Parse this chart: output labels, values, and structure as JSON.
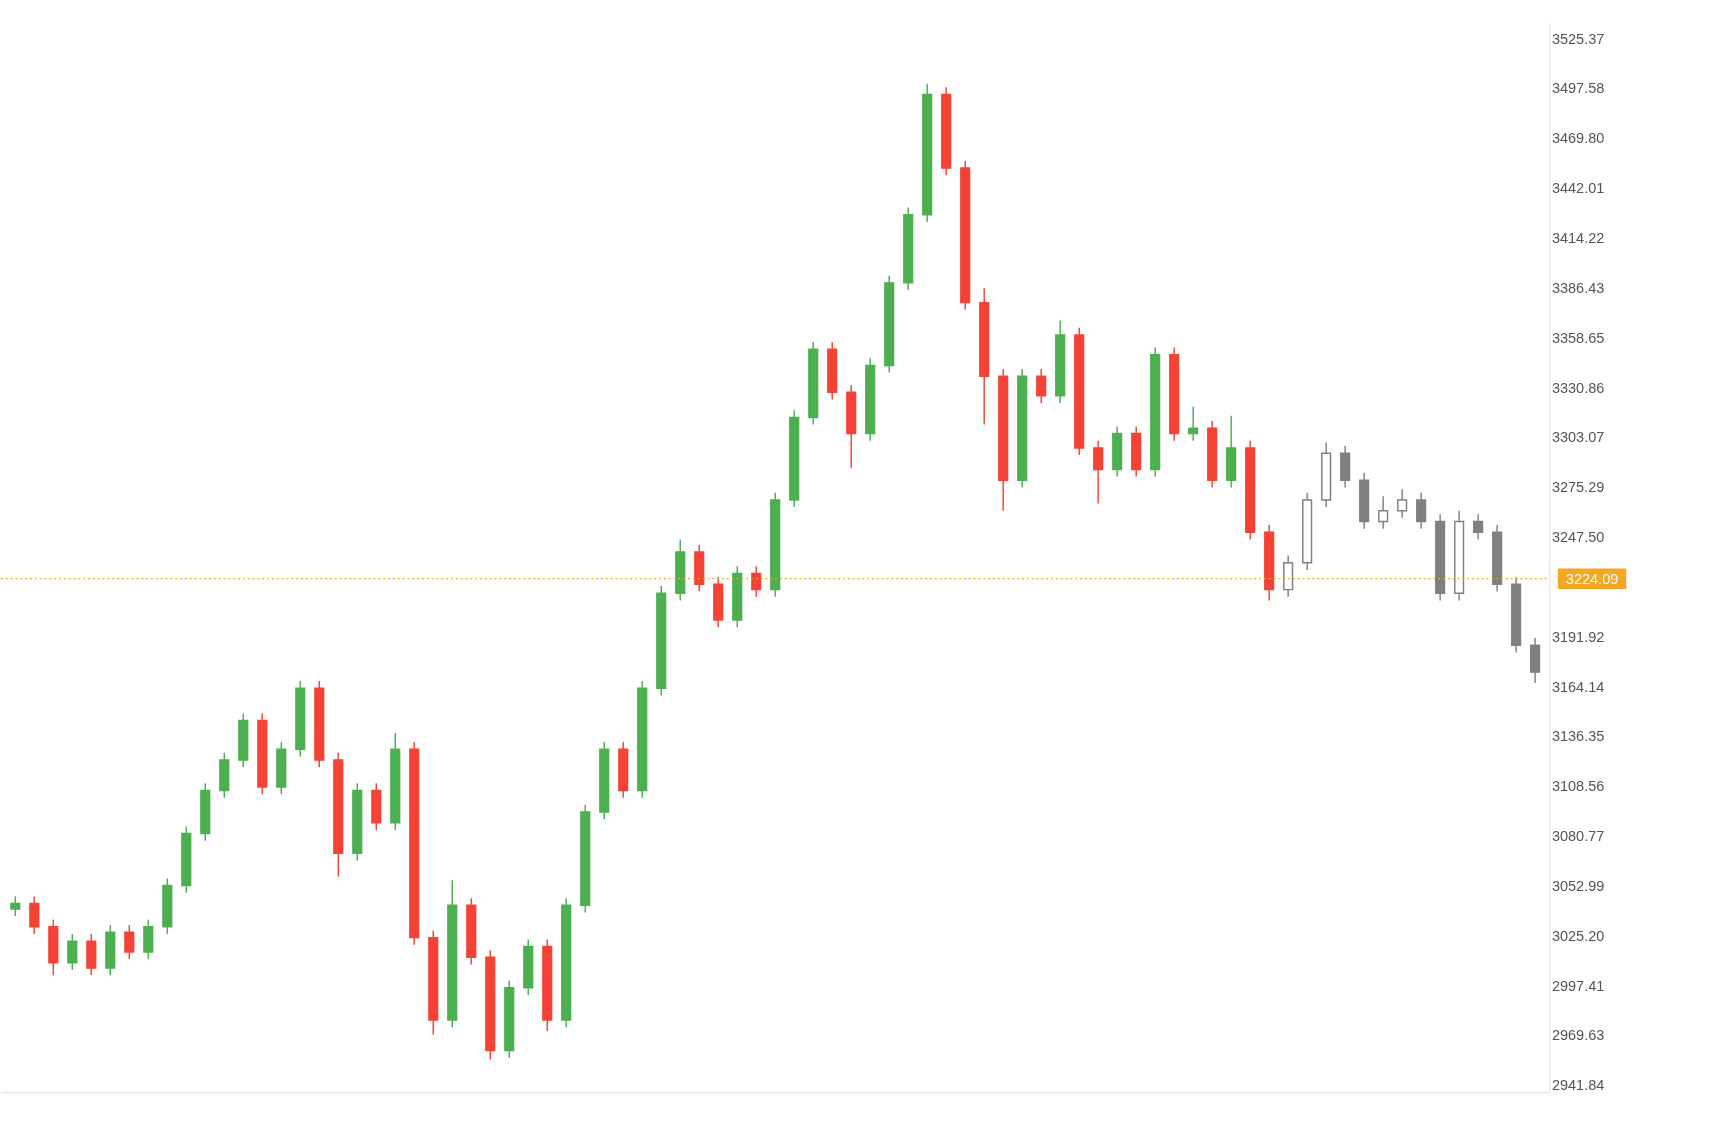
{
  "chart_data": {
    "type": "candlestick",
    "categories": [
      null,
      null,
      null,
      null,
      null,
      null,
      null,
      null,
      null,
      null,
      null,
      null,
      null,
      null,
      null,
      null,
      null,
      null,
      null,
      null,
      null,
      null,
      null,
      null,
      null,
      null,
      null,
      null,
      null,
      null,
      null,
      null,
      null,
      null,
      null,
      null,
      null,
      null,
      null,
      null,
      null,
      null,
      null,
      null,
      null,
      null,
      null,
      null,
      null,
      null,
      null,
      null,
      null,
      null,
      null,
      null,
      null,
      null,
      null,
      null,
      null,
      null,
      null,
      null,
      null,
      null,
      null,
      null,
      null,
      null,
      null,
      null,
      null,
      null,
      null,
      null,
      null,
      null,
      null,
      null,
      null
    ],
    "series": [
      {
        "colors": [
          "#4caf50",
          "#f44336",
          "#f44336",
          "#4caf50",
          "#f44336",
          "#4caf50",
          "#f44336",
          "#4caf50",
          "#4caf50",
          "#4caf50",
          "#4caf50",
          "#4caf50",
          "#4caf50",
          "#f44336",
          "#4caf50",
          "#4caf50",
          "#f44336",
          "#f44336",
          "#4caf50",
          "#f44336",
          "#4caf50",
          "#f44336",
          "#f44336",
          "#4caf50",
          "#f44336",
          "#f44336",
          "#4caf50",
          "#4caf50",
          "#f44336",
          "#4caf50",
          "#4caf50",
          "#4caf50",
          "#f44336",
          "#4caf50",
          "#4caf50",
          "#4caf50",
          "#f44336",
          "#f44336",
          "#4caf50",
          "#f44336",
          "#4caf50",
          "#4caf50",
          "#4caf50",
          "#f44336",
          "#f44336",
          "#4caf50",
          "#4caf50",
          "#4caf50",
          "#4caf50",
          "#f44336",
          "#f44336",
          "#f44336",
          "#f44336",
          "#4caf50",
          "#f44336",
          "#4caf50",
          "#f44336",
          "#f44336",
          "#4caf50",
          "#f44336",
          "#4caf50",
          "#f44336",
          "#4caf50",
          "#f44336",
          "#4caf50",
          "#f44336",
          "#f44336",
          null,
          null,
          null,
          null,
          null,
          null,
          null,
          null,
          null,
          null,
          null,
          null,
          null,
          null
        ],
        "ohlc": [
          [
            3040,
            3047,
            3036,
            3043
          ],
          [
            3043,
            3047,
            3026,
            3030
          ],
          [
            3030,
            3034,
            3003,
            3010
          ],
          [
            3010,
            3026,
            3006,
            3022
          ],
          [
            3022,
            3026,
            3003,
            3007
          ],
          [
            3007,
            3031,
            3003,
            3027
          ],
          [
            3027,
            3031,
            3012,
            3016
          ],
          [
            3016,
            3034,
            3012,
            3030
          ],
          [
            3030,
            3057,
            3026,
            3053
          ],
          [
            3053,
            3086,
            3049,
            3082
          ],
          [
            3082,
            3110,
            3078,
            3106
          ],
          [
            3106,
            3127,
            3102,
            3123
          ],
          [
            3123,
            3149,
            3119,
            3145
          ],
          [
            3145,
            3149,
            3104,
            3108
          ],
          [
            3108,
            3133,
            3104,
            3129
          ],
          [
            3129,
            3167,
            3125,
            3163
          ],
          [
            3163,
            3167,
            3119,
            3123
          ],
          [
            3123,
            3127,
            3058,
            3071
          ],
          [
            3071,
            3110,
            3067,
            3106
          ],
          [
            3106,
            3110,
            3084,
            3088
          ],
          [
            3088,
            3138,
            3084,
            3129
          ],
          [
            3129,
            3133,
            3020,
            3024
          ],
          [
            3024,
            3028,
            2970,
            2978
          ],
          [
            2978,
            3056,
            2974,
            3042
          ],
          [
            3042,
            3046,
            3009,
            3013
          ],
          [
            3013,
            3017,
            2956,
            2961
          ],
          [
            2961,
            3000,
            2957,
            2996
          ],
          [
            2996,
            3023,
            2992,
            3019
          ],
          [
            3019,
            3023,
            2972,
            2978
          ],
          [
            2978,
            3046,
            2974,
            3042
          ],
          [
            3042,
            3098,
            3038,
            3094
          ],
          [
            3094,
            3133,
            3090,
            3129
          ],
          [
            3129,
            3133,
            3102,
            3106
          ],
          [
            3106,
            3167,
            3102,
            3163
          ],
          [
            3163,
            3220,
            3159,
            3216
          ],
          [
            3216,
            3246,
            3212,
            3239
          ],
          [
            3239,
            3243,
            3217,
            3221
          ],
          [
            3221,
            3225,
            3197,
            3201
          ],
          [
            3201,
            3231,
            3197,
            3227
          ],
          [
            3227,
            3231,
            3214,
            3218
          ],
          [
            3218,
            3272,
            3214,
            3268
          ],
          [
            3268,
            3318,
            3264,
            3314
          ],
          [
            3314,
            3356,
            3310,
            3352
          ],
          [
            3352,
            3356,
            3324,
            3328
          ],
          [
            3328,
            3332,
            3286,
            3305
          ],
          [
            3305,
            3347,
            3301,
            3343
          ],
          [
            3343,
            3393,
            3339,
            3389
          ],
          [
            3389,
            3431,
            3385,
            3427
          ],
          [
            3427,
            3500,
            3423,
            3494
          ],
          [
            3494,
            3498,
            3449,
            3453
          ],
          [
            3453,
            3457,
            3374,
            3378
          ],
          [
            3378,
            3386,
            3310,
            3337
          ],
          [
            3337,
            3341,
            3262,
            3279
          ],
          [
            3279,
            3341,
            3275,
            3337
          ],
          [
            3337,
            3341,
            3322,
            3326
          ],
          [
            3326,
            3368,
            3322,
            3360
          ],
          [
            3360,
            3364,
            3293,
            3297
          ],
          [
            3297,
            3301,
            3266,
            3285
          ],
          [
            3285,
            3309,
            3281,
            3305
          ],
          [
            3305,
            3309,
            3281,
            3285
          ],
          [
            3285,
            3353,
            3281,
            3349
          ],
          [
            3349,
            3353,
            3301,
            3305
          ],
          [
            3305,
            3320,
            3301,
            3308
          ],
          [
            3308,
            3312,
            3275,
            3279
          ],
          [
            3279,
            3315,
            3275,
            3297
          ],
          [
            3297,
            3301,
            3246,
            3250
          ],
          [
            3250,
            3254,
            3212,
            3218
          ],
          null,
          null,
          null,
          null,
          null,
          null,
          null,
          null,
          null,
          null,
          null,
          null,
          null,
          null
        ]
      },
      {
        "color": "#808080",
        "ohlc": [
          null,
          null,
          null,
          null,
          null,
          null,
          null,
          null,
          null,
          null,
          null,
          null,
          null,
          null,
          null,
          null,
          null,
          null,
          null,
          null,
          null,
          null,
          null,
          null,
          null,
          null,
          null,
          null,
          null,
          null,
          null,
          null,
          null,
          null,
          null,
          null,
          null,
          null,
          null,
          null,
          null,
          null,
          null,
          null,
          null,
          null,
          null,
          null,
          null,
          null,
          null,
          null,
          null,
          null,
          null,
          null,
          null,
          null,
          null,
          null,
          null,
          null,
          null,
          null,
          null,
          null,
          null,
          [
            3218,
            3237,
            3214,
            3233
          ],
          [
            3233,
            3272,
            3229,
            3268
          ],
          [
            3268,
            3300,
            3264,
            3294
          ],
          [
            3294,
            3298,
            3275,
            3279
          ],
          [
            3279,
            3283,
            3252,
            3256
          ],
          [
            3256,
            3270,
            3252,
            3262
          ],
          [
            3262,
            3274,
            3258,
            3268
          ],
          [
            3268,
            3272,
            3252,
            3256
          ],
          [
            3256,
            3260,
            3212,
            3216
          ],
          [
            3216,
            3262,
            3212,
            3256
          ],
          [
            3256,
            3260,
            3246,
            3250
          ],
          [
            3250,
            3254,
            3217,
            3221
          ],
          [
            3221,
            3225,
            3183,
            3187
          ],
          [
            3187,
            3191,
            3166,
            3172
          ]
        ]
      }
    ],
    "ylim": [
      2937.8,
      3534.0
    ],
    "yticks": [
      3525.37,
      3497.58,
      {
        "value": 3469.8,
        "label": "3469.80"
      },
      3442.01,
      3414.22,
      3386.43,
      3358.65,
      3330.86,
      3303.07,
      3275.29,
      {
        "value": 3247.5,
        "label": "3247.50"
      },
      3191.92,
      3164.14,
      3136.35,
      3108.56,
      3080.77,
      3052.99,
      {
        "value": 3025.2,
        "label": "3025.20"
      },
      2997.41,
      2969.63,
      2941.84
    ],
    "ref_lines": [
      {
        "axis": "y",
        "value": 3224.09,
        "label": "3224.09",
        "color": "#f5a623",
        "line_style": "dotted"
      }
    ],
    "tick_labels": "y",
    "grid": false
  }
}
